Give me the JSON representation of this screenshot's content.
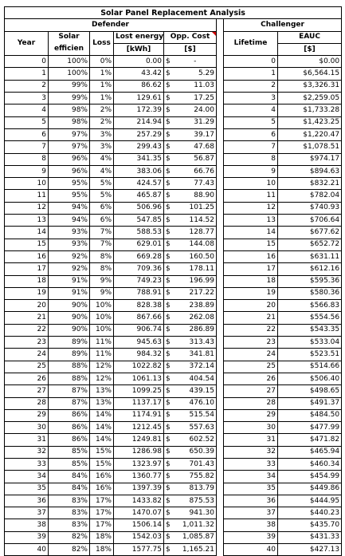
{
  "title": "Solar Panel Replacement Analysis",
  "groups": {
    "defender": "Defender",
    "challenger": "Challenger"
  },
  "headers": {
    "year": "Year",
    "solar_line1": "Solar",
    "solar_line2": "efficien",
    "loss": "Loss",
    "lost_energy": "Lost energy",
    "lost_energy_unit": "[kWh]",
    "opp_cost": "Opp. Cost",
    "opp_cost_unit": "[$]",
    "lifetime": "Lifetime",
    "eauc": "EAUC",
    "eauc_unit": "[$]"
  },
  "currency_symbol": "$",
  "comment_marker_color": "#d00000",
  "rows": [
    {
      "year": "0",
      "eff": "100%",
      "loss": "0%",
      "lost": "0.00",
      "opp": "-",
      "life": "0",
      "eauc": "$0.00"
    },
    {
      "year": "1",
      "eff": "100%",
      "loss": "1%",
      "lost": "43.42",
      "opp": "5.29",
      "life": "1",
      "eauc": "$6,564.15"
    },
    {
      "year": "2",
      "eff": "99%",
      "loss": "1%",
      "lost": "86.62",
      "opp": "11.03",
      "life": "2",
      "eauc": "$3,326.31"
    },
    {
      "year": "3",
      "eff": "99%",
      "loss": "1%",
      "lost": "129.61",
      "opp": "17.25",
      "life": "3",
      "eauc": "$2,259.05"
    },
    {
      "year": "4",
      "eff": "98%",
      "loss": "2%",
      "lost": "172.39",
      "opp": "24.00",
      "life": "4",
      "eauc": "$1,733.28"
    },
    {
      "year": "5",
      "eff": "98%",
      "loss": "2%",
      "lost": "214.94",
      "opp": "31.29",
      "life": "5",
      "eauc": "$1,423.25"
    },
    {
      "year": "6",
      "eff": "97%",
      "loss": "3%",
      "lost": "257.29",
      "opp": "39.17",
      "life": "6",
      "eauc": "$1,220.47"
    },
    {
      "year": "7",
      "eff": "97%",
      "loss": "3%",
      "lost": "299.43",
      "opp": "47.68",
      "life": "7",
      "eauc": "$1,078.51"
    },
    {
      "year": "8",
      "eff": "96%",
      "loss": "4%",
      "lost": "341.35",
      "opp": "56.87",
      "life": "8",
      "eauc": "$974.17"
    },
    {
      "year": "9",
      "eff": "96%",
      "loss": "4%",
      "lost": "383.06",
      "opp": "66.76",
      "life": "9",
      "eauc": "$894.63"
    },
    {
      "year": "10",
      "eff": "95%",
      "loss": "5%",
      "lost": "424.57",
      "opp": "77.43",
      "life": "10",
      "eauc": "$832.21"
    },
    {
      "year": "11",
      "eff": "95%",
      "loss": "5%",
      "lost": "465.87",
      "opp": "88.90",
      "life": "11",
      "eauc": "$782.04"
    },
    {
      "year": "12",
      "eff": "94%",
      "loss": "6%",
      "lost": "506.96",
      "opp": "101.25",
      "life": "12",
      "eauc": "$740.93"
    },
    {
      "year": "13",
      "eff": "94%",
      "loss": "6%",
      "lost": "547.85",
      "opp": "114.52",
      "life": "13",
      "eauc": "$706.64"
    },
    {
      "year": "14",
      "eff": "93%",
      "loss": "7%",
      "lost": "588.53",
      "opp": "128.77",
      "life": "14",
      "eauc": "$677.62"
    },
    {
      "year": "15",
      "eff": "93%",
      "loss": "7%",
      "lost": "629.01",
      "opp": "144.08",
      "life": "15",
      "eauc": "$652.72"
    },
    {
      "year": "16",
      "eff": "92%",
      "loss": "8%",
      "lost": "669.28",
      "opp": "160.50",
      "life": "16",
      "eauc": "$631.11"
    },
    {
      "year": "17",
      "eff": "92%",
      "loss": "8%",
      "lost": "709.36",
      "opp": "178.11",
      "life": "17",
      "eauc": "$612.16"
    },
    {
      "year": "18",
      "eff": "91%",
      "loss": "9%",
      "lost": "749.23",
      "opp": "196.99",
      "life": "18",
      "eauc": "$595.36"
    },
    {
      "year": "19",
      "eff": "91%",
      "loss": "9%",
      "lost": "788.91",
      "opp": "217.22",
      "life": "19",
      "eauc": "$580.36"
    },
    {
      "year": "20",
      "eff": "90%",
      "loss": "10%",
      "lost": "828.38",
      "opp": "238.89",
      "life": "20",
      "eauc": "$566.83"
    },
    {
      "year": "21",
      "eff": "90%",
      "loss": "10%",
      "lost": "867.66",
      "opp": "262.08",
      "life": "21",
      "eauc": "$554.56"
    },
    {
      "year": "22",
      "eff": "90%",
      "loss": "10%",
      "lost": "906.74",
      "opp": "286.89",
      "life": "22",
      "eauc": "$543.35"
    },
    {
      "year": "23",
      "eff": "89%",
      "loss": "11%",
      "lost": "945.63",
      "opp": "313.43",
      "life": "23",
      "eauc": "$533.04"
    },
    {
      "year": "24",
      "eff": "89%",
      "loss": "11%",
      "lost": "984.32",
      "opp": "341.81",
      "life": "24",
      "eauc": "$523.51"
    },
    {
      "year": "25",
      "eff": "88%",
      "loss": "12%",
      "lost": "1022.82",
      "opp": "372.14",
      "life": "25",
      "eauc": "$514.66"
    },
    {
      "year": "26",
      "eff": "88%",
      "loss": "12%",
      "lost": "1061.13",
      "opp": "404.54",
      "life": "26",
      "eauc": "$506.40"
    },
    {
      "year": "27",
      "eff": "87%",
      "loss": "13%",
      "lost": "1099.25",
      "opp": "439.15",
      "life": "27",
      "eauc": "$498.65"
    },
    {
      "year": "28",
      "eff": "87%",
      "loss": "13%",
      "lost": "1137.17",
      "opp": "476.10",
      "life": "28",
      "eauc": "$491.37"
    },
    {
      "year": "29",
      "eff": "86%",
      "loss": "14%",
      "lost": "1174.91",
      "opp": "515.54",
      "life": "29",
      "eauc": "$484.50"
    },
    {
      "year": "30",
      "eff": "86%",
      "loss": "14%",
      "lost": "1212.45",
      "opp": "557.63",
      "life": "30",
      "eauc": "$477.99"
    },
    {
      "year": "31",
      "eff": "86%",
      "loss": "14%",
      "lost": "1249.81",
      "opp": "602.52",
      "life": "31",
      "eauc": "$471.82"
    },
    {
      "year": "32",
      "eff": "85%",
      "loss": "15%",
      "lost": "1286.98",
      "opp": "650.39",
      "life": "32",
      "eauc": "$465.94"
    },
    {
      "year": "33",
      "eff": "85%",
      "loss": "15%",
      "lost": "1323.97",
      "opp": "701.43",
      "life": "33",
      "eauc": "$460.34"
    },
    {
      "year": "34",
      "eff": "84%",
      "loss": "16%",
      "lost": "1360.77",
      "opp": "755.82",
      "life": "34",
      "eauc": "$454.99"
    },
    {
      "year": "35",
      "eff": "84%",
      "loss": "16%",
      "lost": "1397.39",
      "opp": "813.79",
      "life": "35",
      "eauc": "$449.86"
    },
    {
      "year": "36",
      "eff": "83%",
      "loss": "17%",
      "lost": "1433.82",
      "opp": "875.53",
      "life": "36",
      "eauc": "$444.95"
    },
    {
      "year": "37",
      "eff": "83%",
      "loss": "17%",
      "lost": "1470.07",
      "opp": "941.30",
      "life": "37",
      "eauc": "$440.23"
    },
    {
      "year": "38",
      "eff": "83%",
      "loss": "17%",
      "lost": "1506.14",
      "opp": "1,011.32",
      "life": "38",
      "eauc": "$435.70"
    },
    {
      "year": "39",
      "eff": "82%",
      "loss": "18%",
      "lost": "1542.03",
      "opp": "1,085.87",
      "life": "39",
      "eauc": "$431.33"
    },
    {
      "year": "40",
      "eff": "82%",
      "loss": "18%",
      "lost": "1577.75",
      "opp": "1,165.21",
      "life": "40",
      "eauc": "$427.13"
    }
  ]
}
